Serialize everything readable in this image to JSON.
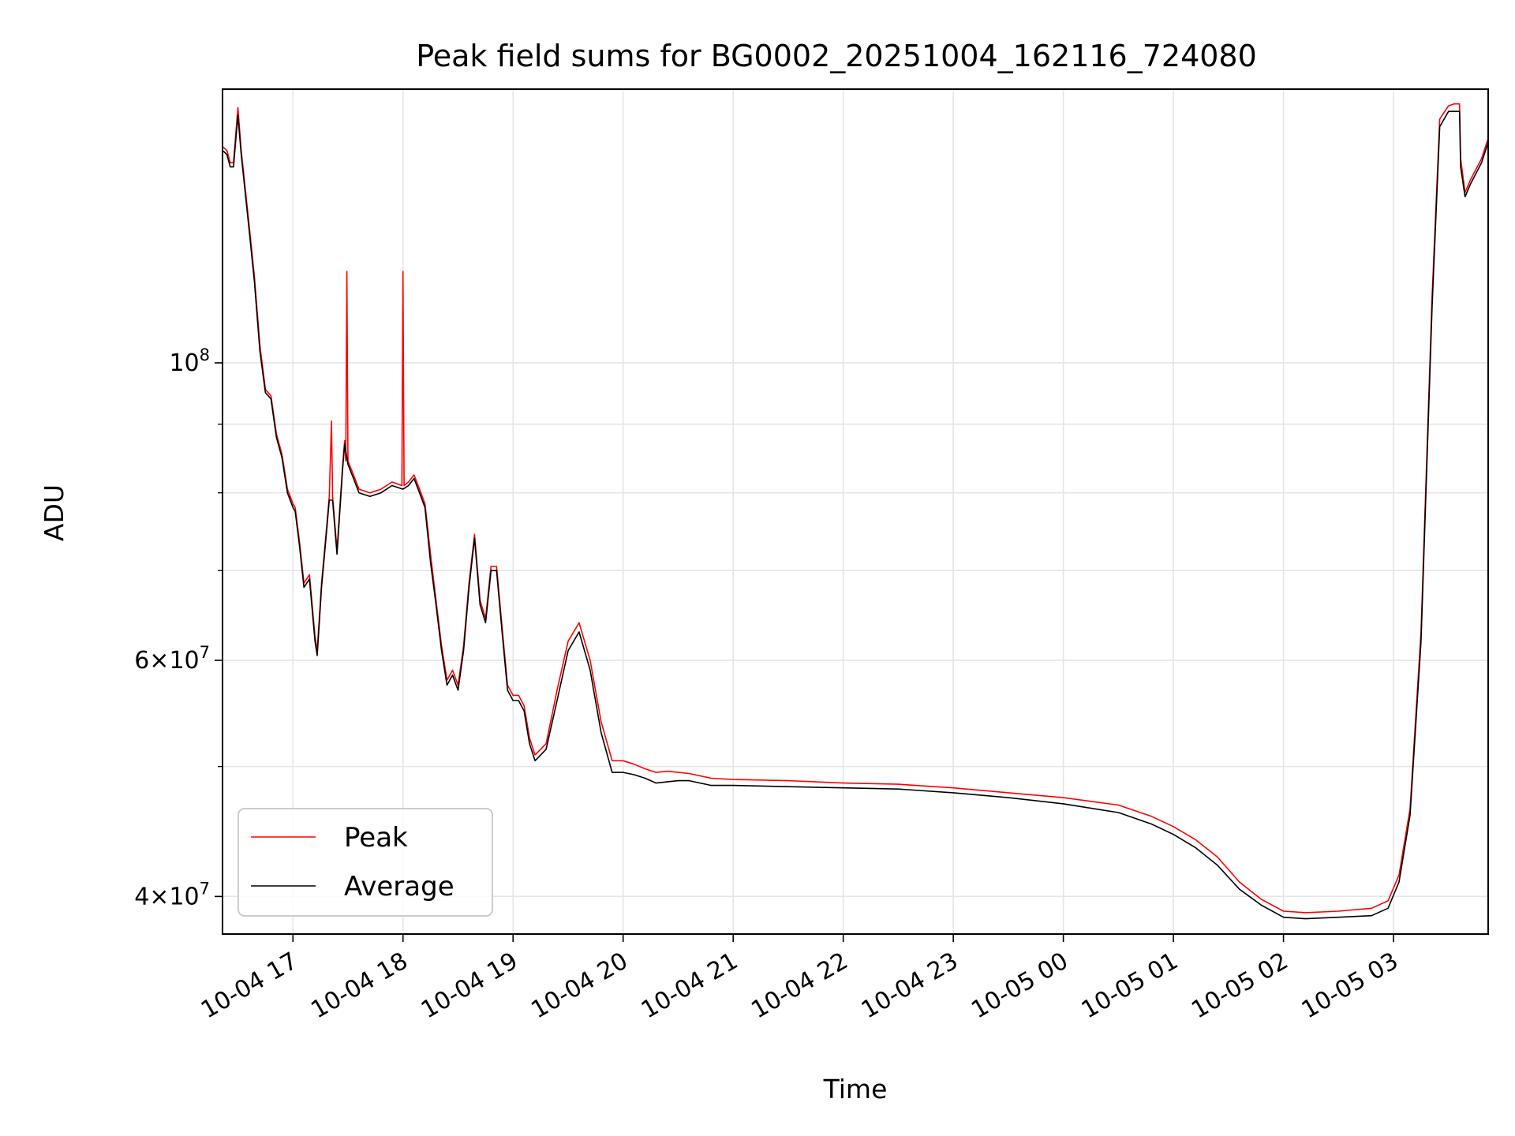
{
  "chart_data": {
    "type": "line",
    "title": "Peak field sums for BG0002_20251004_162116_724080",
    "xlabel": "Time",
    "ylabel": "ADU",
    "yscale": "log",
    "grid": true,
    "xlim": [
      16.36,
      27.86
    ],
    "ylim": [
      37500000,
      160000000
    ],
    "x_ticks": [
      {
        "value": 17,
        "label": "10-04 17"
      },
      {
        "value": 18,
        "label": "10-04 18"
      },
      {
        "value": 19,
        "label": "10-04 19"
      },
      {
        "value": 20,
        "label": "10-04 20"
      },
      {
        "value": 21,
        "label": "10-04 21"
      },
      {
        "value": 22,
        "label": "10-04 22"
      },
      {
        "value": 23,
        "label": "10-04 23"
      },
      {
        "value": 24,
        "label": "10-05 00"
      },
      {
        "value": 25,
        "label": "10-05 01"
      },
      {
        "value": 26,
        "label": "10-05 02"
      },
      {
        "value": 27,
        "label": "10-05 03"
      }
    ],
    "y_major_ticks": [
      {
        "value": 40000000,
        "mant": "4",
        "exp": "7"
      },
      {
        "value": 60000000,
        "mant": "6",
        "exp": "7"
      },
      {
        "value": 100000000,
        "mant": "",
        "exp": "8"
      }
    ],
    "y_minor_ticks": [
      50000000,
      70000000,
      80000000,
      90000000
    ],
    "legend": {
      "position": "lower-left",
      "entries": [
        "Peak",
        "Average"
      ]
    },
    "series": [
      {
        "name": "Average",
        "color": "#000000",
        "points": [
          [
            16.36,
            144
          ],
          [
            16.4,
            143
          ],
          [
            16.43,
            140
          ],
          [
            16.46,
            140
          ],
          [
            16.5,
            153
          ],
          [
            16.53,
            143
          ],
          [
            16.6,
            126
          ],
          [
            16.65,
            115
          ],
          [
            16.7,
            102
          ],
          [
            16.75,
            95
          ],
          [
            16.8,
            94
          ],
          [
            16.85,
            88
          ],
          [
            16.9,
            85
          ],
          [
            16.95,
            80
          ],
          [
            17.0,
            78
          ],
          [
            17.02,
            77.5
          ],
          [
            17.06,
            73
          ],
          [
            17.1,
            68
          ],
          [
            17.15,
            69
          ],
          [
            17.2,
            62
          ],
          [
            17.22,
            60.5
          ],
          [
            17.26,
            68
          ],
          [
            17.3,
            74
          ],
          [
            17.33,
            79
          ],
          [
            17.36,
            79
          ],
          [
            17.4,
            72
          ],
          [
            17.45,
            83
          ],
          [
            17.47,
            87
          ],
          [
            17.5,
            84
          ],
          [
            17.55,
            82
          ],
          [
            17.6,
            80
          ],
          [
            17.7,
            79.5
          ],
          [
            17.8,
            80
          ],
          [
            17.9,
            81
          ],
          [
            18.0,
            80.5
          ],
          [
            18.05,
            81
          ],
          [
            18.1,
            82
          ],
          [
            18.15,
            80
          ],
          [
            18.2,
            78
          ],
          [
            18.25,
            71
          ],
          [
            18.3,
            66
          ],
          [
            18.35,
            61
          ],
          [
            18.4,
            57.5
          ],
          [
            18.45,
            58.5
          ],
          [
            18.5,
            57
          ],
          [
            18.55,
            61
          ],
          [
            18.6,
            68
          ],
          [
            18.65,
            74
          ],
          [
            18.7,
            66
          ],
          [
            18.75,
            64
          ],
          [
            18.8,
            70
          ],
          [
            18.85,
            70
          ],
          [
            18.9,
            63
          ],
          [
            18.95,
            57
          ],
          [
            19.0,
            56
          ],
          [
            19.05,
            56
          ],
          [
            19.1,
            55
          ],
          [
            19.15,
            52
          ],
          [
            19.2,
            50.5
          ],
          [
            19.3,
            51.5
          ],
          [
            19.4,
            56
          ],
          [
            19.5,
            61
          ],
          [
            19.6,
            63
          ],
          [
            19.7,
            59
          ],
          [
            19.8,
            53
          ],
          [
            19.9,
            49.5
          ],
          [
            20.0,
            49.5
          ],
          [
            20.1,
            49.3
          ],
          [
            20.2,
            49
          ],
          [
            20.3,
            48.6
          ],
          [
            20.4,
            48.7
          ],
          [
            20.5,
            48.8
          ],
          [
            20.6,
            48.8
          ],
          [
            20.8,
            48.4
          ],
          [
            21.0,
            48.4
          ],
          [
            21.5,
            48.3
          ],
          [
            22.0,
            48.2
          ],
          [
            22.5,
            48.1
          ],
          [
            23.0,
            47.8
          ],
          [
            23.5,
            47.4
          ],
          [
            24.0,
            46.9
          ],
          [
            24.5,
            46.2
          ],
          [
            24.8,
            45.3
          ],
          [
            25.0,
            44.5
          ],
          [
            25.2,
            43.5
          ],
          [
            25.4,
            42.2
          ],
          [
            25.6,
            40.5
          ],
          [
            25.8,
            39.4
          ],
          [
            26.0,
            38.6
          ],
          [
            26.2,
            38.5
          ],
          [
            26.5,
            38.6
          ],
          [
            26.8,
            38.7
          ],
          [
            26.95,
            39.2
          ],
          [
            27.05,
            41
          ],
          [
            27.15,
            46
          ],
          [
            27.25,
            62
          ],
          [
            27.35,
            110
          ],
          [
            27.42,
            150
          ],
          [
            27.5,
            154
          ],
          [
            27.55,
            154
          ],
          [
            27.6,
            154
          ],
          [
            27.61,
            140
          ],
          [
            27.65,
            133
          ],
          [
            27.7,
            136
          ],
          [
            27.8,
            141
          ],
          [
            27.86,
            146
          ]
        ]
      },
      {
        "name": "Peak",
        "color": "#ff0000",
        "points": [
          [
            16.36,
            145
          ],
          [
            16.4,
            144
          ],
          [
            16.43,
            141
          ],
          [
            16.46,
            141
          ],
          [
            16.5,
            155
          ],
          [
            16.53,
            144
          ],
          [
            16.6,
            127
          ],
          [
            16.65,
            116
          ],
          [
            16.7,
            103
          ],
          [
            16.75,
            95.5
          ],
          [
            16.8,
            94.5
          ],
          [
            16.85,
            88.5
          ],
          [
            16.9,
            85.5
          ],
          [
            16.95,
            80.5
          ],
          [
            17.0,
            78.5
          ],
          [
            17.02,
            78
          ],
          [
            17.06,
            73.5
          ],
          [
            17.1,
            68.5
          ],
          [
            17.15,
            69.5
          ],
          [
            17.2,
            62.5
          ],
          [
            17.22,
            61
          ],
          [
            17.26,
            68.5
          ],
          [
            17.3,
            74.5
          ],
          [
            17.33,
            79.5
          ],
          [
            17.35,
            90.5
          ],
          [
            17.36,
            79.5
          ],
          [
            17.4,
            72.5
          ],
          [
            17.45,
            83.5
          ],
          [
            17.47,
            87.5
          ],
          [
            17.48,
            84.5
          ],
          [
            17.49,
            117
          ],
          [
            17.5,
            84.5
          ],
          [
            17.55,
            82.5
          ],
          [
            17.6,
            80.5
          ],
          [
            17.7,
            80
          ],
          [
            17.8,
            80.5
          ],
          [
            17.9,
            81.5
          ],
          [
            17.99,
            81
          ],
          [
            18.0,
            117
          ],
          [
            18.01,
            81
          ],
          [
            18.05,
            81.5
          ],
          [
            18.1,
            82.5
          ],
          [
            18.15,
            80.5
          ],
          [
            18.2,
            78.5
          ],
          [
            18.25,
            72
          ],
          [
            18.3,
            66.5
          ],
          [
            18.35,
            61.5
          ],
          [
            18.4,
            58
          ],
          [
            18.45,
            59
          ],
          [
            18.5,
            57.5
          ],
          [
            18.55,
            61.5
          ],
          [
            18.6,
            68.5
          ],
          [
            18.65,
            74.5
          ],
          [
            18.7,
            66.5
          ],
          [
            18.75,
            64.5
          ],
          [
            18.8,
            70.5
          ],
          [
            18.85,
            70.5
          ],
          [
            18.9,
            63.5
          ],
          [
            18.95,
            57.5
          ],
          [
            19.0,
            56.5
          ],
          [
            19.05,
            56.5
          ],
          [
            19.1,
            55.5
          ],
          [
            19.15,
            52.5
          ],
          [
            19.2,
            51
          ],
          [
            19.3,
            52
          ],
          [
            19.4,
            57
          ],
          [
            19.5,
            62
          ],
          [
            19.6,
            64
          ],
          [
            19.7,
            60
          ],
          [
            19.8,
            54
          ],
          [
            19.9,
            50.5
          ],
          [
            20.0,
            50.5
          ],
          [
            20.1,
            50.2
          ],
          [
            20.2,
            49.8
          ],
          [
            20.3,
            49.5
          ],
          [
            20.4,
            49.6
          ],
          [
            20.5,
            49.5
          ],
          [
            20.6,
            49.4
          ],
          [
            20.8,
            49
          ],
          [
            21.0,
            48.9
          ],
          [
            21.5,
            48.8
          ],
          [
            22.0,
            48.6
          ],
          [
            22.5,
            48.5
          ],
          [
            23.0,
            48.2
          ],
          [
            23.5,
            47.8
          ],
          [
            24.0,
            47.4
          ],
          [
            24.5,
            46.8
          ],
          [
            24.8,
            45.9
          ],
          [
            25.0,
            45.1
          ],
          [
            25.2,
            44.1
          ],
          [
            25.4,
            42.8
          ],
          [
            25.6,
            41
          ],
          [
            25.8,
            39.8
          ],
          [
            26.0,
            39
          ],
          [
            26.2,
            38.9
          ],
          [
            26.5,
            39
          ],
          [
            26.8,
            39.2
          ],
          [
            26.95,
            39.7
          ],
          [
            27.05,
            41.5
          ],
          [
            27.15,
            46.5
          ],
          [
            27.25,
            63
          ],
          [
            27.35,
            112
          ],
          [
            27.42,
            152
          ],
          [
            27.5,
            155.5
          ],
          [
            27.55,
            156
          ],
          [
            27.6,
            156
          ],
          [
            27.61,
            142
          ],
          [
            27.65,
            134
          ],
          [
            27.7,
            137
          ],
          [
            27.8,
            142
          ],
          [
            27.86,
            147
          ]
        ]
      }
    ]
  }
}
